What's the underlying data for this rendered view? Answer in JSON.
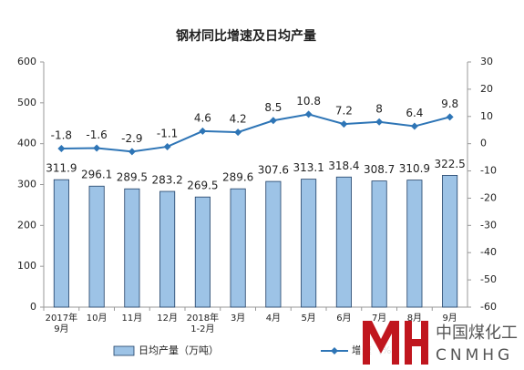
{
  "chart_data": {
    "type": "bar_line",
    "title": "钢材同比增速及日均产量",
    "categories": [
      "2017年\n9月",
      "10月",
      "11月",
      "12月",
      "2018年\n1-2月",
      "3月",
      "4月",
      "5月",
      "6月",
      "7月",
      "8月",
      "9月"
    ],
    "series": [
      {
        "name": "日均产量（万吨）",
        "type": "bar",
        "color": "#9dc3e6",
        "values": [
          311.9,
          296.1,
          289.5,
          283.2,
          269.5,
          289.6,
          307.6,
          313.1,
          318.4,
          308.7,
          310.9,
          322.5
        ]
      },
      {
        "name": "增速（%）",
        "type": "line",
        "axis": "y2",
        "color": "#2e75b6",
        "values": [
          -1.8,
          -1.6,
          -2.9,
          -1.1,
          4.6,
          4.2,
          8.5,
          10.8,
          7.2,
          8.0,
          6.4,
          9.8
        ]
      }
    ],
    "ylim": [
      0,
      600
    ],
    "yticks": [
      0,
      100,
      200,
      300,
      400,
      500,
      600
    ],
    "y2lim": [
      -60,
      30
    ],
    "y2ticks": [
      -60,
      -50,
      -40,
      -30,
      -20,
      -10,
      0,
      10,
      20,
      30
    ],
    "grid": false,
    "watermark": {
      "cn": "中国煤化工",
      "en": "CNMHG"
    }
  }
}
